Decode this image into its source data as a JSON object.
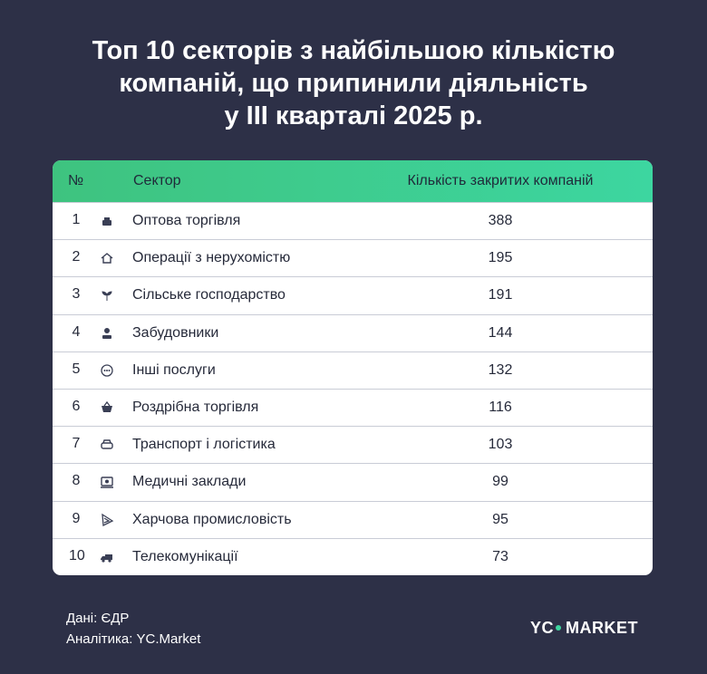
{
  "header": {
    "title": [
      "Топ 10 секторів з найбільшою кількістю",
      "компаній, що припинили діяльність",
      "у ІІІ кварталі 2025 р."
    ]
  },
  "table": {
    "columns": [
      "№",
      "Сектор",
      "Кількість закритих компаній"
    ],
    "rows": [
      [
        "1",
        "Оптова торгівля",
        "388"
      ],
      [
        "2",
        "Операції з нерухомістю",
        "195"
      ],
      [
        "3",
        "Сільське господарство",
        "191"
      ],
      [
        "4",
        "Забудовники",
        "144"
      ],
      [
        "5",
        "Інші послуги",
        "132"
      ],
      [
        "6",
        "Роздрібна торгівля",
        "116"
      ],
      [
        "7",
        "Транспорт і логістика",
        "103"
      ],
      [
        "8",
        "Медичні заклади",
        "99"
      ],
      [
        "9",
        "Харчова промисловість",
        "95"
      ],
      [
        "10",
        "Телекомунікації",
        "73"
      ]
    ]
  },
  "footer": {
    "source": "Дані: ЄДР",
    "analytics": "Аналітика: YC.Market",
    "logo": [
      "YC",
      "MARKET"
    ]
  }
}
